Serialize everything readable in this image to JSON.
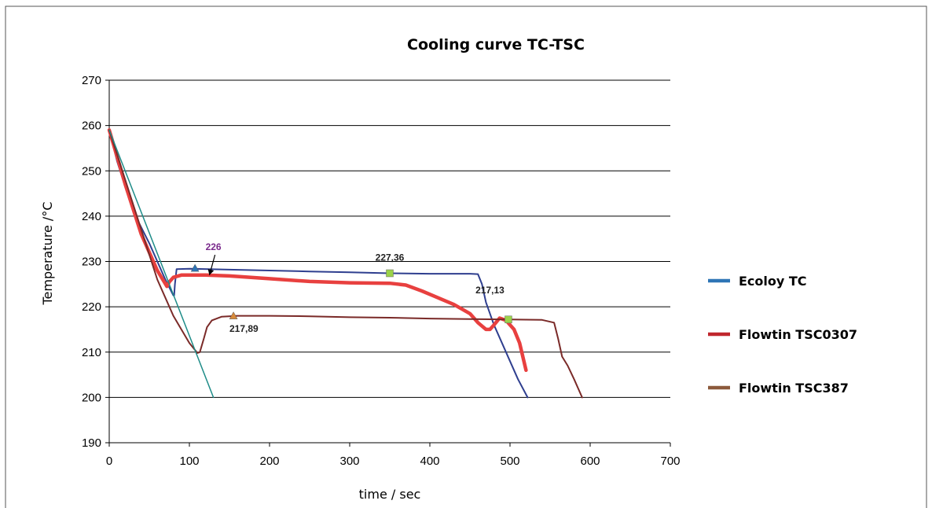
{
  "chart_data": {
    "type": "line",
    "title": "Cooling curve TC-TSC",
    "xlabel": "time / sec",
    "ylabel": "Temperature /°C",
    "xlim": [
      0,
      700
    ],
    "ylim": [
      190,
      270
    ],
    "x_ticks": [
      "0",
      "100",
      "200",
      "300",
      "400",
      "500",
      "600",
      "700"
    ],
    "y_ticks": [
      "190",
      "200",
      "210",
      "220",
      "230",
      "240",
      "250",
      "260",
      "270"
    ],
    "grid": "horizontal",
    "legend_position": "right",
    "series": [
      {
        "name": "Ecoloy TC",
        "color": "#2f3f8f",
        "legend_color": "#2e75b6",
        "points": [
          [
            0,
            259
          ],
          [
            10,
            252
          ],
          [
            30,
            241
          ],
          [
            50,
            234
          ],
          [
            70,
            226
          ],
          [
            80,
            222.5
          ],
          [
            81,
            222.5
          ],
          [
            82,
            225
          ],
          [
            84,
            228.3
          ],
          [
            100,
            228.4
          ],
          [
            150,
            228.2
          ],
          [
            200,
            228
          ],
          [
            250,
            227.8
          ],
          [
            300,
            227.6
          ],
          [
            350,
            227.4
          ],
          [
            400,
            227.3
          ],
          [
            450,
            227.3
          ],
          [
            460,
            227.2
          ],
          [
            465,
            225
          ],
          [
            470,
            221
          ],
          [
            480,
            216
          ],
          [
            490,
            212
          ],
          [
            500,
            208
          ],
          [
            510,
            204
          ],
          [
            522,
            200
          ]
        ]
      },
      {
        "name": "Flowtin TSC0307",
        "color": "#e8403f",
        "legend_color": "#c0272d",
        "points": [
          [
            0,
            259
          ],
          [
            20,
            247
          ],
          [
            40,
            236
          ],
          [
            60,
            228
          ],
          [
            72,
            224.5
          ],
          [
            75,
            225.5
          ],
          [
            80,
            226.5
          ],
          [
            90,
            227
          ],
          [
            120,
            227
          ],
          [
            150,
            226.8
          ],
          [
            200,
            226.2
          ],
          [
            250,
            225.6
          ],
          [
            300,
            225.3
          ],
          [
            350,
            225.2
          ],
          [
            370,
            224.8
          ],
          [
            390,
            223.5
          ],
          [
            410,
            222
          ],
          [
            430,
            220.5
          ],
          [
            450,
            218.5
          ],
          [
            460,
            216.5
          ],
          [
            470,
            215
          ],
          [
            475,
            215
          ],
          [
            480,
            216
          ],
          [
            487,
            217.5
          ],
          [
            495,
            217
          ],
          [
            505,
            215
          ],
          [
            512,
            212
          ],
          [
            520,
            206
          ]
        ]
      },
      {
        "name": "Flowtin TSC387",
        "color": "#7a2a28",
        "legend_color": "#8c5a3c",
        "points": [
          [
            0,
            259
          ],
          [
            20,
            248
          ],
          [
            40,
            237
          ],
          [
            60,
            226
          ],
          [
            80,
            218
          ],
          [
            100,
            212
          ],
          [
            110,
            209.8
          ],
          [
            113,
            210
          ],
          [
            118,
            213
          ],
          [
            122,
            215.5
          ],
          [
            128,
            217
          ],
          [
            140,
            217.8
          ],
          [
            160,
            218
          ],
          [
            200,
            218
          ],
          [
            250,
            217.9
          ],
          [
            300,
            217.7
          ],
          [
            350,
            217.6
          ],
          [
            400,
            217.4
          ],
          [
            450,
            217.3
          ],
          [
            500,
            217.2
          ],
          [
            540,
            217.1
          ],
          [
            555,
            216.5
          ],
          [
            560,
            213
          ],
          [
            565,
            209
          ],
          [
            572,
            207
          ],
          [
            580,
            204
          ],
          [
            590,
            200
          ]
        ]
      },
      {
        "name": "",
        "color": "#1e8c88",
        "legend_color": "#1e8c88",
        "points": [
          [
            0,
            259
          ],
          [
            130,
            200
          ]
        ]
      }
    ],
    "markers": [
      {
        "series": "Ecoloy TC",
        "shape": "triangle",
        "color": "#2e75b6",
        "x": 107,
        "y": 228.5
      },
      {
        "series": "Flowtin TSC387",
        "shape": "triangle",
        "color": "#d88a3a",
        "x": 155,
        "y": 218
      },
      {
        "series": "Ecoloy TC",
        "shape": "square",
        "color": "#9bd24a",
        "x": 350,
        "y": 227.4
      },
      {
        "series": "Flowtin TSC387",
        "shape": "square",
        "color": "#9bd24a",
        "x": 498,
        "y": 217.2
      }
    ],
    "annotations": [
      {
        "text": "226",
        "color": "#7a2a8c",
        "x": 130,
        "y": 232.5,
        "arrow_to": [
          125,
          227
        ]
      },
      {
        "text": "227,36",
        "color": "#222222",
        "x": 350,
        "y": 230.2
      },
      {
        "text": "217,13",
        "color": "#222222",
        "x": 475,
        "y": 223
      },
      {
        "text": "217,89",
        "color": "#222222",
        "x": 168,
        "y": 214.5
      }
    ]
  }
}
